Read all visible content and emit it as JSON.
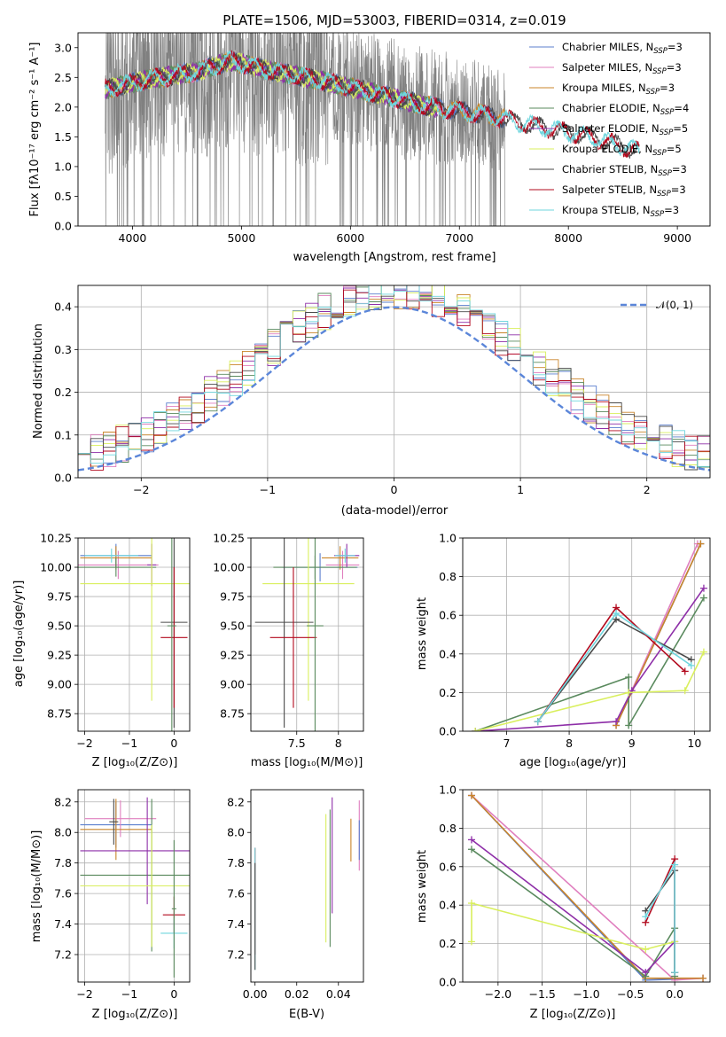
{
  "colors": {
    "palette": [
      "#5b7fce",
      "#e07fbf",
      "#c9852a",
      "#5a8a5e",
      "#8e2fa8",
      "#d9ef5d",
      "#4a4a4a",
      "#b20a1e",
      "#6fd6de"
    ],
    "spectrum": "#808080",
    "grid": "#b0b0b0"
  },
  "chart_data": [
    {
      "id": "spectrum",
      "type": "line",
      "title": "PLATE=1506, MJD=53003, FIBERID=0314, z=0.019",
      "xlabel": "wavelength [Angstrom, rest frame]",
      "ylabel": "Flux [fλ10⁻¹⁷ erg cm⁻² s⁻¹ A⁻¹]",
      "xlim": [
        3500,
        9300
      ],
      "ylim": [
        0,
        3.25
      ],
      "xticks": [
        4000,
        5000,
        6000,
        7000,
        8000,
        9000
      ],
      "yticks": [
        0.0,
        0.5,
        1.0,
        1.5,
        2.0,
        2.5,
        3.0
      ],
      "grid": false,
      "legend_position": "top-right",
      "legend": [
        {
          "label": "Chabrier MILES, N",
          "sub": "SSP",
          "tail": "=3"
        },
        {
          "label": "Salpeter MILES, N",
          "sub": "SSP",
          "tail": "=3"
        },
        {
          "label": "Kroupa MILES, N",
          "sub": "SSP",
          "tail": "=3"
        },
        {
          "label": "Chabrier ELODIE, N",
          "sub": "SSP",
          "tail": "=4"
        },
        {
          "label": "Salpeter ELODIE, N",
          "sub": "SSP",
          "tail": "=5"
        },
        {
          "label": "Kroupa ELODIE, N",
          "sub": "SSP",
          "tail": "=5"
        },
        {
          "label": "Chabrier STELIB, N",
          "sub": "SSP",
          "tail": "=3"
        },
        {
          "label": "Salpeter STELIB, N",
          "sub": "SSP",
          "tail": "=3"
        },
        {
          "label": "Kroupa STELIB, N",
          "sub": "SSP",
          "tail": "=3"
        }
      ],
      "continuum": [
        [
          3750,
          2.3
        ],
        [
          4100,
          2.45
        ],
        [
          4600,
          2.6
        ],
        [
          4900,
          2.78
        ],
        [
          5300,
          2.6
        ],
        [
          5800,
          2.42
        ],
        [
          6300,
          2.2
        ],
        [
          6700,
          2.02
        ],
        [
          7300,
          1.85
        ],
        [
          7700,
          1.68
        ],
        [
          8200,
          1.5
        ],
        [
          8650,
          1.25
        ]
      ],
      "data_range": [
        3750,
        7420
      ],
      "model_ranges": {
        "MILES": [
          3750,
          7420
        ],
        "ELODIE": [
          3750,
          6800
        ],
        "STELIB": [
          3750,
          8650
        ]
      }
    },
    {
      "id": "residuals",
      "type": "line",
      "xlabel": "(data-model)/error",
      "ylabel": "Normed distribution",
      "xlim": [
        -2.5,
        2.5
      ],
      "ylim": [
        0,
        0.45
      ],
      "xticks": [
        -2,
        -1,
        0,
        1,
        2
      ],
      "yticks": [
        0.0,
        0.1,
        0.2,
        0.3,
        0.4
      ],
      "grid": true,
      "legend_position": "top-right",
      "gauss_label": "𝒩(0, 1)",
      "bin_width": 0.1
    },
    {
      "id": "z-age",
      "type": "scatter",
      "xlabel": "Z [log₁₀(Z/Z⊙)]",
      "ylabel": "age  [log₁₀(age/yr)]",
      "xlim": [
        -2.15,
        0.35
      ],
      "ylim": [
        8.6,
        10.25
      ],
      "xticks": [
        -2,
        -1,
        0
      ],
      "yticks": [
        8.75,
        9.0,
        9.25,
        9.5,
        9.75,
        10.0,
        10.25
      ],
      "grid": true,
      "points": [
        {
          "c": 0,
          "x": -1.3,
          "y": 10.1,
          "ex": 0.8,
          "ey": 0.1
        },
        {
          "c": 1,
          "x": -1.25,
          "y": 10.02,
          "ex": 0.9,
          "ey": 0.12
        },
        {
          "c": 2,
          "x": -1.3,
          "y": 10.08,
          "ex": 0.8,
          "ey": 0.1
        },
        {
          "c": 3,
          "x": -1.3,
          "y": 10.0,
          "ex": 0.9,
          "ey": 0.08
        },
        {
          "c": 4,
          "x": -0.5,
          "y": 10.02,
          "ex": 0.1,
          "ey": 0.18
        },
        {
          "c": 5,
          "x": -0.5,
          "y": 9.86,
          "ex": 1.6,
          "ey": 1.0
        },
        {
          "c": 6,
          "x": 0.0,
          "y": 9.53,
          "ex": 0.3,
          "ey": 0.9
        },
        {
          "c": 7,
          "x": 0.0,
          "y": 9.4,
          "ex": 0.3,
          "ey": 0.6
        },
        {
          "c": 8,
          "x": -1.4,
          "y": 10.1,
          "ex": 0.6,
          "ey": 0.06
        },
        {
          "c": 3,
          "x": -0.05,
          "y": 9.5,
          "ex": 0.1,
          "ey": 0.9
        }
      ]
    },
    {
      "id": "mass-age",
      "type": "scatter",
      "xlabel": "mass [log₁₀(M/M⊙)]",
      "ylabel": "",
      "xlim": [
        6.95,
        8.3
      ],
      "ylim": [
        8.6,
        10.25
      ],
      "xticks": [
        7.5,
        8.0
      ],
      "yticks": [
        8.75,
        9.0,
        9.25,
        9.5,
        9.75,
        10.0,
        10.25
      ],
      "grid": true,
      "points": [
        {
          "c": 0,
          "x": 7.78,
          "y": 10.0,
          "ex": 0.45,
          "ey": 0.12
        },
        {
          "c": 1,
          "x": 8.05,
          "y": 10.02,
          "ex": 0.2,
          "ey": 0.12
        },
        {
          "c": 2,
          "x": 8.02,
          "y": 10.08,
          "ex": 0.22,
          "ey": 0.1
        },
        {
          "c": 3,
          "x": 7.72,
          "y": 10.0,
          "ex": 0.5,
          "ey": 0.1
        },
        {
          "c": 4,
          "x": 8.1,
          "y": 10.1,
          "ex": 0.15,
          "ey": 0.1
        },
        {
          "c": 5,
          "x": 7.64,
          "y": 9.86,
          "ex": 0.55,
          "ey": 1.0
        },
        {
          "c": 6,
          "x": 7.35,
          "y": 9.53,
          "ex": 0.35,
          "ey": 0.9
        },
        {
          "c": 7,
          "x": 7.46,
          "y": 9.4,
          "ex": 0.28,
          "ey": 0.6
        },
        {
          "c": 8,
          "x": 8.08,
          "y": 10.1,
          "ex": 0.12,
          "ey": 0.06
        },
        {
          "c": 3,
          "x": 7.72,
          "y": 9.5,
          "ex": 0.1,
          "ey": 0.9
        }
      ]
    },
    {
      "id": "age-weight",
      "type": "line",
      "xlabel": "age  [log₁₀(age/yr)]",
      "ylabel": "mass weight",
      "xlim": [
        6.3,
        10.25
      ],
      "ylim": [
        0,
        1.0
      ],
      "xticks": [
        7,
        8,
        9,
        10
      ],
      "yticks": [
        0.0,
        0.2,
        0.4,
        0.6,
        0.8,
        1.0
      ],
      "grid": true,
      "series": [
        {
          "c": 0,
          "points": [
            [
              8.75,
              0.03
            ],
            [
              10.1,
              0.97
            ]
          ]
        },
        {
          "c": 1,
          "points": [
            [
              8.75,
              0.03
            ],
            [
              10.05,
              0.97
            ]
          ]
        },
        {
          "c": 2,
          "points": [
            [
              8.75,
              0.03
            ],
            [
              10.1,
              0.97
            ]
          ]
        },
        {
          "c": 3,
          "points": [
            [
              6.5,
              0.0
            ],
            [
              8.95,
              0.28
            ],
            [
              8.95,
              0.03
            ],
            [
              10.15,
              0.69
            ]
          ]
        },
        {
          "c": 4,
          "points": [
            [
              6.5,
              0.0
            ],
            [
              8.75,
              0.05
            ],
            [
              9.0,
              0.21
            ],
            [
              10.15,
              0.74
            ]
          ]
        },
        {
          "c": 5,
          "points": [
            [
              6.5,
              0.0
            ],
            [
              8.95,
              0.2
            ],
            [
              9.85,
              0.21
            ],
            [
              10.15,
              0.41
            ]
          ]
        },
        {
          "c": 6,
          "points": [
            [
              7.5,
              0.05
            ],
            [
              8.75,
              0.58
            ],
            [
              9.95,
              0.37
            ]
          ]
        },
        {
          "c": 7,
          "points": [
            [
              7.5,
              0.05
            ],
            [
              8.75,
              0.64
            ],
            [
              9.85,
              0.31
            ]
          ]
        },
        {
          "c": 8,
          "points": [
            [
              7.5,
              0.05
            ],
            [
              8.75,
              0.61
            ],
            [
              9.95,
              0.34
            ]
          ]
        }
      ]
    },
    {
      "id": "z-mass",
      "type": "scatter",
      "xlabel": "Z [log₁₀(Z/Z⊙)]",
      "ylabel": "mass [log₁₀(M/M⊙)]",
      "xlim": [
        -2.15,
        0.35
      ],
      "ylim": [
        7.02,
        8.28
      ],
      "xticks": [
        -2,
        -1,
        0
      ],
      "yticks": [
        7.2,
        7.4,
        7.6,
        7.8,
        8.0,
        8.2
      ],
      "grid": true,
      "points": [
        {
          "c": 0,
          "x": -1.3,
          "y": 8.05,
          "ex": 0.8,
          "ey": 0.15
        },
        {
          "c": 1,
          "x": -1.2,
          "y": 8.09,
          "ex": 0.8,
          "ey": 0.12
        },
        {
          "c": 2,
          "x": -1.3,
          "y": 8.02,
          "ex": 0.8,
          "ey": 0.2
        },
        {
          "c": 3,
          "x": -0.5,
          "y": 7.72,
          "ex": 1.6,
          "ey": 0.5
        },
        {
          "c": 4,
          "x": -0.6,
          "y": 7.88,
          "ex": 1.5,
          "ey": 0.35
        },
        {
          "c": 5,
          "x": -0.5,
          "y": 7.65,
          "ex": 1.6,
          "ey": 0.4
        },
        {
          "c": 6,
          "x": -1.35,
          "y": 8.07,
          "ex": 0.1,
          "ey": 0.15
        },
        {
          "c": 7,
          "x": 0.0,
          "y": 7.46,
          "ex": 0.25,
          "ey": 0.12
        },
        {
          "c": 8,
          "x": 0.0,
          "y": 7.34,
          "ex": 0.3,
          "ey": 0.1
        },
        {
          "c": 3,
          "x": 0.0,
          "y": 7.5,
          "ex": 0.05,
          "ey": 0.45
        }
      ]
    },
    {
      "id": "ebv-mass",
      "type": "scatter",
      "xlabel": "E(B-V)",
      "ylabel": "",
      "xlim": [
        -0.002,
        0.052
      ],
      "ylim": [
        7.02,
        8.28
      ],
      "xticks": [
        0.0,
        0.02,
        0.04
      ],
      "xtick_labels": [
        "0.00",
        "0.02",
        "0.04"
      ],
      "yticks": [
        7.2,
        7.4,
        7.6,
        7.8,
        8.0,
        8.2
      ],
      "grid": false,
      "points": [
        {
          "c": 5,
          "x": 0.034,
          "y": 7.7,
          "ey": 0.42
        },
        {
          "c": 4,
          "x": 0.037,
          "y": 7.85,
          "ey": 0.38
        },
        {
          "c": 3,
          "x": 0.036,
          "y": 7.7,
          "ey": 0.45
        },
        {
          "c": 2,
          "x": 0.046,
          "y": 7.95,
          "ey": 0.14
        },
        {
          "c": 1,
          "x": 0.05,
          "y": 7.98,
          "ey": 0.23
        },
        {
          "c": 0,
          "x": 0.05,
          "y": 7.95,
          "ey": 0.13
        },
        {
          "c": 7,
          "x": 0.0,
          "y": 7.55,
          "ey": 0.35
        },
        {
          "c": 8,
          "x": 0.0,
          "y": 7.5,
          "ey": 0.4
        },
        {
          "c": 6,
          "x": 0.0,
          "y": 7.45,
          "ey": 0.35
        }
      ]
    },
    {
      "id": "z-weight",
      "type": "line",
      "xlabel": "Z [log₁₀(Z/Z⊙)]",
      "ylabel": "mass weight",
      "xlim": [
        -2.4,
        0.4
      ],
      "ylim": [
        0,
        1.0
      ],
      "xticks": [
        -2.0,
        -1.5,
        -1.0,
        -0.5,
        0.0
      ],
      "xtick_labels": [
        "−2.0",
        "−1.5",
        "−1.0",
        "−0.5",
        "0.0"
      ],
      "yticks": [
        0.0,
        0.2,
        0.4,
        0.6,
        0.8,
        1.0
      ],
      "grid": true,
      "series": [
        {
          "c": 0,
          "points": [
            [
              -2.3,
              0.97
            ],
            [
              -0.33,
              0.01
            ],
            [
              0.32,
              0.02
            ]
          ]
        },
        {
          "c": 1,
          "points": [
            [
              -2.3,
              0.97
            ],
            [
              0.0,
              0.01
            ],
            [
              0.32,
              0.02
            ]
          ]
        },
        {
          "c": 2,
          "points": [
            [
              -2.3,
              0.97
            ],
            [
              -0.33,
              0.02
            ],
            [
              0.32,
              0.02
            ]
          ]
        },
        {
          "c": 3,
          "points": [
            [
              -2.3,
              0.69
            ],
            [
              -0.33,
              0.03
            ],
            [
              0.0,
              0.28
            ],
            [
              0.0,
              0.03
            ]
          ]
        },
        {
          "c": 4,
          "points": [
            [
              -2.3,
              0.74
            ],
            [
              -0.33,
              0.05
            ],
            [
              0.0,
              0.21
            ]
          ]
        },
        {
          "c": 5,
          "points": [
            [
              -2.3,
              0.21
            ],
            [
              -2.3,
              0.41
            ],
            [
              -0.33,
              0.17
            ],
            [
              0.0,
              0.21
            ]
          ]
        },
        {
          "c": 6,
          "points": [
            [
              -0.33,
              0.37
            ],
            [
              0.0,
              0.58
            ],
            [
              0.0,
              0.05
            ]
          ]
        },
        {
          "c": 7,
          "points": [
            [
              -0.33,
              0.31
            ],
            [
              0.0,
              0.64
            ],
            [
              0.0,
              0.05
            ]
          ]
        },
        {
          "c": 8,
          "points": [
            [
              -0.33,
              0.34
            ],
            [
              0.0,
              0.61
            ],
            [
              0.0,
              0.05
            ]
          ]
        }
      ]
    }
  ]
}
